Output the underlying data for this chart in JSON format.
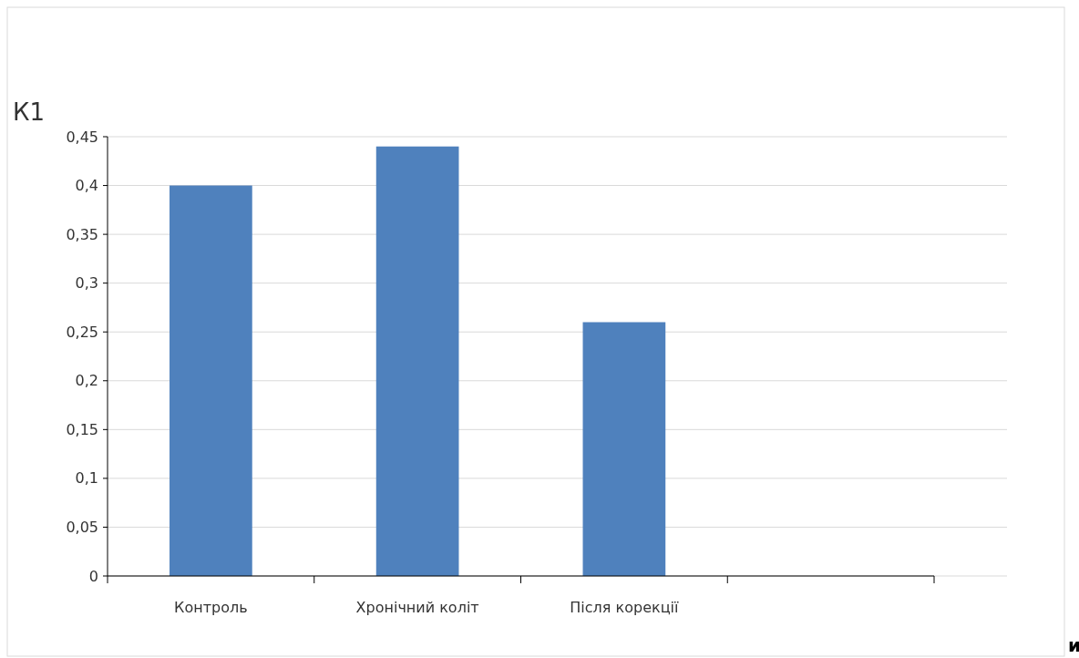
{
  "chart_data": {
    "type": "bar",
    "ylabel": "К1",
    "categories": [
      "Контроль",
      "Хронічний коліт",
      "Після корекції",
      null
    ],
    "values": [
      0.4,
      0.44,
      0.26,
      null
    ],
    "color": "#4f81bd",
    "ylim": [
      0,
      0.45
    ],
    "yticks": [
      0,
      {
        "value": 0.05,
        "label": "0,05"
      },
      {
        "value": 0.1,
        "label": "0,1"
      },
      {
        "value": 0.15,
        "label": "0,15"
      },
      {
        "value": 0.2,
        "label": "0,2"
      },
      {
        "value": 0.25,
        "label": "0,25"
      },
      {
        "value": 0.3,
        "label": "0,3"
      },
      {
        "value": 0.35,
        "label": "0,35"
      },
      {
        "value": 0.4,
        "label": "0,4"
      },
      {
        "value": 0.45,
        "label": "0,45"
      }
    ],
    "grid": "y",
    "annotations": [
      "и"
    ]
  }
}
